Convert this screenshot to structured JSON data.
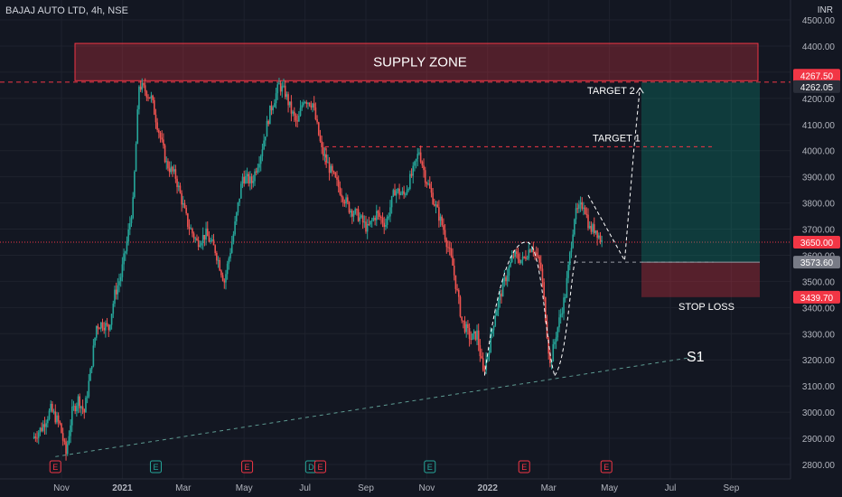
{
  "header": {
    "title": "BAJAJ AUTO LTD, 4h, NSE",
    "currency": "INR"
  },
  "annotations": {
    "supply_zone": "SUPPLY ZONE",
    "target_2": "TARGET 2",
    "target_1": "TARGET 1",
    "stop_loss": "STOP LOSS",
    "s1": "S1"
  },
  "price_tags": [
    {
      "value": 4267.5,
      "label": "4267.50",
      "color": "#f23645"
    },
    {
      "value": 4262.05,
      "label": "4262.05",
      "color": "#2a2e39"
    },
    {
      "value": 3650.0,
      "label": "3650.00",
      "color": "#f23645"
    },
    {
      "value": 3573.6,
      "label": "3573.60",
      "color": "#787b86"
    },
    {
      "value": 3439.7,
      "label": "3439.70",
      "color": "#f23645"
    }
  ],
  "earnings_markers": [
    "E",
    "E",
    "E",
    "D",
    "E",
    "E",
    "E",
    "E"
  ],
  "colors": {
    "up": "#26a69a",
    "down": "#ef5350",
    "background": "#131722",
    "supply": "#f23645",
    "target_zone": "#089981"
  },
  "chart_data": {
    "type": "candlestick",
    "title": "BAJAJ AUTO LTD, 4h, NSE",
    "ylim": [
      2760,
      4520
    ],
    "y_ticks": [
      2800,
      2900,
      3000,
      3100,
      3200,
      3300,
      3400,
      3500,
      3600,
      3700,
      3800,
      3900,
      4000,
      4100,
      4200,
      4300,
      4400,
      4500
    ],
    "y_tick_labels": [
      "2800.00",
      "2900.00",
      "3000.00",
      "3100.00",
      "3200.00",
      "3300.00",
      "3400.00",
      "3500.00",
      "3600.00",
      "3700.00",
      "3800.00",
      "3900.00",
      "4000.00",
      "4100.00",
      "4200.00",
      "4300.00",
      "4400.00",
      "4500.00"
    ],
    "x_labels": [
      "Nov",
      "2021",
      "Mar",
      "May",
      "Jul",
      "Sep",
      "Nov",
      "2022",
      "Mar",
      "May",
      "Jul",
      "Sep"
    ],
    "x_label_positions": [
      0,
      2,
      4,
      6,
      8,
      10,
      12,
      14,
      16,
      18,
      20,
      22
    ],
    "earnings_positions": [
      -0.2,
      3.1,
      6.1,
      8.2,
      8.5,
      12.1,
      15.2,
      17.9
    ],
    "series": [
      {
        "values": [
          [
            -0.9,
            2900
          ],
          [
            -0.6,
            2940
          ],
          [
            -0.3,
            3010
          ],
          [
            0.0,
            2950
          ],
          [
            0.2,
            2840
          ],
          [
            0.4,
            3000
          ],
          [
            0.6,
            3050
          ],
          [
            0.8,
            3000
          ],
          [
            1.0,
            3150
          ],
          [
            1.2,
            3330
          ],
          [
            1.4,
            3340
          ],
          [
            1.6,
            3320
          ],
          [
            1.8,
            3450
          ],
          [
            2.0,
            3520
          ],
          [
            2.2,
            3650
          ],
          [
            2.4,
            3800
          ],
          [
            2.6,
            4250
          ],
          [
            2.8,
            4230
          ],
          [
            3.0,
            4200
          ],
          [
            3.2,
            4100
          ],
          [
            3.5,
            3950
          ],
          [
            3.8,
            3900
          ],
          [
            4.2,
            3720
          ],
          [
            4.5,
            3650
          ],
          [
            4.8,
            3680
          ],
          [
            5.1,
            3620
          ],
          [
            5.4,
            3500
          ],
          [
            5.7,
            3680
          ],
          [
            6.0,
            3900
          ],
          [
            6.3,
            3880
          ],
          [
            6.6,
            3990
          ],
          [
            6.9,
            4150
          ],
          [
            7.2,
            4250
          ],
          [
            7.4,
            4220
          ],
          [
            7.6,
            4150
          ],
          [
            7.8,
            4100
          ],
          [
            8.0,
            4200
          ],
          [
            8.3,
            4180
          ],
          [
            8.6,
            4000
          ],
          [
            8.9,
            3920
          ],
          [
            9.2,
            3850
          ],
          [
            9.5,
            3780
          ],
          [
            9.8,
            3750
          ],
          [
            10.1,
            3700
          ],
          [
            10.4,
            3760
          ],
          [
            10.7,
            3720
          ],
          [
            11.0,
            3850
          ],
          [
            11.3,
            3830
          ],
          [
            11.6,
            3920
          ],
          [
            11.8,
            4000
          ],
          [
            12.0,
            3900
          ],
          [
            12.3,
            3800
          ],
          [
            12.6,
            3700
          ],
          [
            12.9,
            3560
          ],
          [
            13.2,
            3350
          ],
          [
            13.5,
            3280
          ],
          [
            13.7,
            3300
          ],
          [
            13.9,
            3150
          ],
          [
            14.1,
            3250
          ],
          [
            14.3,
            3380
          ],
          [
            14.6,
            3500
          ],
          [
            14.9,
            3600
          ],
          [
            15.2,
            3580
          ],
          [
            15.5,
            3640
          ],
          [
            15.8,
            3550
          ],
          [
            16.1,
            3180
          ],
          [
            16.3,
            3300
          ],
          [
            16.6,
            3450
          ],
          [
            16.9,
            3750
          ],
          [
            17.2,
            3800
          ],
          [
            17.4,
            3700
          ],
          [
            17.6,
            3700
          ],
          [
            17.8,
            3650
          ]
        ]
      }
    ],
    "levels": {
      "supply_zone": [
        4267.5,
        4410
      ],
      "target_2": 4262.05,
      "target_1": 4015,
      "entry": 3573.6,
      "current": 3650,
      "stop_loss": 3439.7
    },
    "trendline": [
      [
        -0.2,
        2830
      ],
      [
        21.0,
        3215
      ]
    ]
  }
}
